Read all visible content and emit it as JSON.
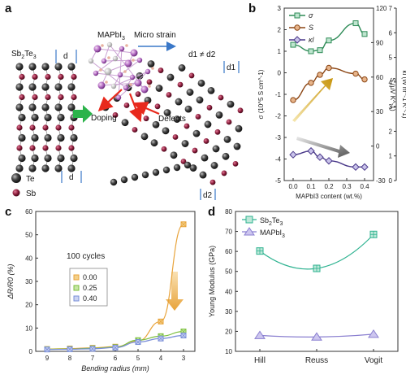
{
  "panel_labels": {
    "a": "a",
    "b": "b",
    "c": "c",
    "d": "d"
  },
  "panel_a": {
    "left_label_base": "Sb",
    "left_label_sub1": "2",
    "left_label_mid": "Te",
    "left_label_sub2": "3",
    "top_label_base": "MAPbI",
    "top_label_sub": "3",
    "micro_strain": "Micro strain",
    "d_left_top": "d",
    "d_left_bottom": "d",
    "d_relation": "d1 ≠ d2",
    "d1": "d1",
    "d2": "d2",
    "doping": "Doping",
    "defects": "Defects",
    "legend_te": "Te",
    "legend_sb": "Sb"
  },
  "chart_data": [
    {
      "panel": "b",
      "type": "line",
      "xlabel": "MAPbI3 content (wt.%)",
      "x": [
        0.0,
        0.1,
        0.15,
        0.2,
        0.35,
        0.4
      ],
      "xticks": [
        "0.0",
        "0.1",
        "0.2",
        "0.3",
        "0.4"
      ],
      "xlim": [
        -0.05,
        0.45
      ],
      "series": [
        {
          "name": "σ",
          "axis": "left",
          "ylim": [
            -5,
            3
          ],
          "ylabel": "σ (10^5 S cm^-1)",
          "values": [
            1.3,
            1.0,
            1.05,
            1.5,
            2.3,
            1.8
          ],
          "color": "#2e8b57"
        },
        {
          "name": "S",
          "axis": "right1",
          "ylim": [
            -30,
            120
          ],
          "ylabel": "S (μV K^-1)",
          "values": [
            40,
            55,
            62,
            68,
            63,
            58
          ],
          "color": "#8b4513"
        },
        {
          "name": "κl",
          "axis": "right2",
          "ylim": [
            0,
            7
          ],
          "ylabel": "κl (W m^-1 K^-1)",
          "values": [
            1.05,
            1.2,
            0.95,
            0.8,
            0.55,
            0.55
          ],
          "color": "#4b3a8a"
        }
      ],
      "yticks_left": [
        "-5",
        "-4",
        "-3",
        "-2",
        "-1",
        "0",
        "1",
        "2",
        "3"
      ],
      "yticks_right1": [
        "-30",
        "0",
        "30",
        "60",
        "90",
        "120"
      ],
      "yticks_right2": [
        "0",
        "1",
        "2",
        "3",
        "4",
        "5",
        "6",
        "7"
      ],
      "legend": [
        "σ",
        "S",
        "κl"
      ]
    },
    {
      "panel": "c",
      "type": "line",
      "xlabel": "Bending radius (mm)",
      "ylabel": "ΔR/R0 (%)",
      "annotation": "100 cycles",
      "categories": [
        "9",
        "8",
        "7",
        "6",
        "5",
        "4",
        "3"
      ],
      "ylim": [
        0,
        60
      ],
      "yticks": [
        "0",
        "10",
        "20",
        "30",
        "40",
        "50",
        "60"
      ],
      "series": [
        {
          "name": "0.00",
          "values": [
            1.0,
            1.2,
            1.5,
            2.0,
            4.5,
            12.8,
            54.5
          ],
          "color": "#e8a33a"
        },
        {
          "name": "0.25",
          "values": [
            0.9,
            1.0,
            1.3,
            1.8,
            4.8,
            6.5,
            8.5
          ],
          "color": "#7bbf3c"
        },
        {
          "name": "0.40",
          "values": [
            0.8,
            0.9,
            1.1,
            1.6,
            4.0,
            5.5,
            6.8
          ],
          "color": "#7a8fd8"
        }
      ]
    },
    {
      "panel": "d",
      "type": "line",
      "ylabel": "Young Modulus (GPa)",
      "categories": [
        "Hill",
        "Reuss",
        "Vogit"
      ],
      "ylim": [
        10,
        80
      ],
      "yticks": [
        "10",
        "20",
        "30",
        "40",
        "50",
        "60",
        "70",
        "80"
      ],
      "series": [
        {
          "name": "Sb2Te3",
          "label_base": "Sb",
          "label_sub1": "2",
          "label_mid": "Te",
          "label_sub2": "3",
          "values": [
            60.2,
            51.5,
            68.5
          ],
          "color": "#2fb391"
        },
        {
          "name": "MAPbI3",
          "label_base": "MAPbI",
          "label_sub1": "3",
          "values": [
            18.0,
            17.2,
            18.6
          ],
          "color": "#8a7fd0"
        }
      ]
    }
  ]
}
